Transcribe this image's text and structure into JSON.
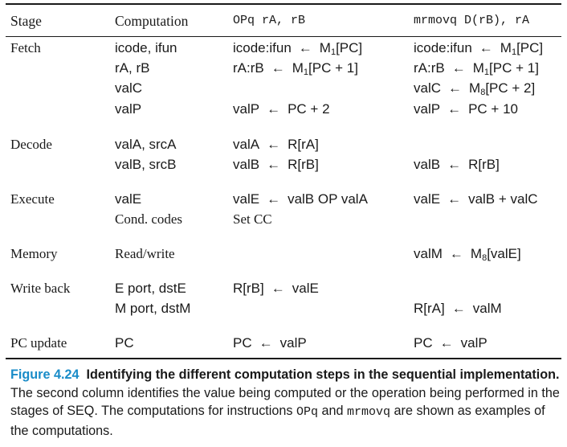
{
  "header": {
    "stage": "Stage",
    "computation": "Computation",
    "opq": "OPq rA, rB",
    "mrmovq": "mrmovq D(rB), rA"
  },
  "stages": {
    "fetch": "Fetch",
    "decode": "Decode",
    "execute": "Execute",
    "memory": "Memory",
    "write_back": "Write back",
    "pc_update": "PC update"
  },
  "computations": {
    "icode_ifun": "icode, ifun",
    "ra_rb": "rA, rB",
    "valc": "valC",
    "valp": "valP",
    "vala_srca": "valA, srcA",
    "valb_srcb": "valB, srcB",
    "vale": "valE",
    "cond_codes": "Cond. codes",
    "read_write": "Read/write",
    "e_port": "E port, dstE",
    "m_port": "M port, dstM",
    "pc": "PC"
  },
  "opq": {
    "fetch1_lhs": "icode:ifun",
    "fetch1_rhs": "M",
    "fetch1_sub": "1",
    "fetch1_rest": "[PC]",
    "fetch2_lhs": "rA:rB",
    "fetch2_rhs": "M",
    "fetch2_sub": "1",
    "fetch2_rest": "[PC + 1]",
    "fetch4_lhs": "valP",
    "fetch4_rhs": "PC + 2",
    "decode1_lhs": "valA",
    "decode1_rhs": "R[rA]",
    "decode2_lhs": "valB",
    "decode2_rhs": "R[rB]",
    "execute1_lhs": "valE",
    "execute1_rhs": "valB OP valA",
    "execute2": "Set CC",
    "wb1_lhs": "R[rB]",
    "wb1_rhs": "valE",
    "pc_lhs": "PC",
    "pc_rhs": "valP"
  },
  "mrmovq": {
    "fetch1_lhs": "icode:ifun",
    "fetch1_rhs": "M",
    "fetch1_sub": "1",
    "fetch1_rest": "[PC]",
    "fetch2_lhs": "rA:rB",
    "fetch2_rhs": "M",
    "fetch2_sub": "1",
    "fetch2_rest": "[PC + 1]",
    "fetch3_lhs": "valC",
    "fetch3_rhs": "M",
    "fetch3_sub": "8",
    "fetch3_rest": "[PC + 2]",
    "fetch4_lhs": "valP",
    "fetch4_rhs": "PC + 10",
    "decode2_lhs": "valB",
    "decode2_rhs": "R[rB]",
    "execute1_lhs": "valE",
    "execute1_rhs": "valB + valC",
    "memory_lhs": "valM",
    "memory_rhs": "M",
    "memory_sub": "8",
    "memory_rest": "[valE]",
    "wb2_lhs": "R[rA]",
    "wb2_rhs": "valM",
    "pc_lhs": "PC",
    "pc_rhs": "valP"
  },
  "arrow": "←",
  "caption": {
    "label": "Figure 4.24",
    "title": "Identifying the different computation steps in the sequential implementation.",
    "text1": " The second column identifies the value being computed or the operation being performed in the stages of SEQ. The computations for instructions ",
    "opq": "OPq",
    "and": " and ",
    "mrmovq": "mrmovq",
    "text2": " are shown as examples of the computations."
  }
}
